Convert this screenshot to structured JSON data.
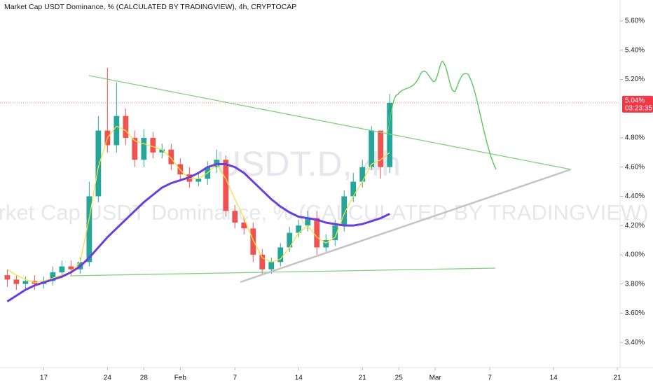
{
  "chart_data": {
    "type": "candlestick",
    "title": "Market Cap USDT Dominance, % (CALCULATED BY TRADINGVIEW), 4h, CRYPTOCAP",
    "watermark": [
      "USDT.D, 4h",
      "Market Cap USDT Dominance, % (CALCULATED BY TRADINGVIEW)"
    ],
    "x": [
      -4,
      -3,
      -2,
      -1,
      0,
      1,
      2,
      3,
      4,
      5,
      6,
      7,
      8,
      9,
      10,
      11,
      12,
      13,
      14,
      15,
      16,
      17,
      18,
      19,
      20,
      21,
      22,
      23,
      24,
      25,
      26,
      27,
      28,
      29,
      30,
      31,
      32,
      33,
      34,
      35,
      36,
      37,
      38
    ],
    "open": [
      3.86,
      3.83,
      3.8,
      3.82,
      3.8,
      3.82,
      3.88,
      3.92,
      3.9,
      3.95,
      4.4,
      4.85,
      4.75,
      4.95,
      4.8,
      4.65,
      4.8,
      4.7,
      4.72,
      4.62,
      4.55,
      4.5,
      4.52,
      4.6,
      4.65,
      4.3,
      4.22,
      4.18,
      4.0,
      3.9,
      3.95,
      4.05,
      4.15,
      4.2,
      4.25,
      4.05,
      4.1,
      4.2,
      4.4,
      4.5,
      4.6,
      4.85,
      4.6
    ],
    "high": [
      3.9,
      3.86,
      3.85,
      3.86,
      3.85,
      3.92,
      3.96,
      3.96,
      3.98,
      4.5,
      4.95,
      5.28,
      5.18,
      5.0,
      4.85,
      4.86,
      4.84,
      4.76,
      4.76,
      4.66,
      4.6,
      4.56,
      4.64,
      4.72,
      4.68,
      4.34,
      4.26,
      4.22,
      4.04,
      3.98,
      4.08,
      4.19,
      4.24,
      4.3,
      4.3,
      4.14,
      4.24,
      4.44,
      4.56,
      4.65,
      4.88,
      4.85,
      5.1
    ],
    "low": [
      3.78,
      3.76,
      3.76,
      3.76,
      3.77,
      3.79,
      3.84,
      3.86,
      3.87,
      3.92,
      4.36,
      4.7,
      4.7,
      4.75,
      4.6,
      4.6,
      4.66,
      4.66,
      4.58,
      4.5,
      4.46,
      4.47,
      4.48,
      4.56,
      4.26,
      4.18,
      4.14,
      3.95,
      3.86,
      3.87,
      3.92,
      4.02,
      4.12,
      4.16,
      4.0,
      4.02,
      4.06,
      4.16,
      4.36,
      4.46,
      4.58,
      4.52,
      4.56
    ],
    "close": [
      3.83,
      3.8,
      3.82,
      3.8,
      3.82,
      3.88,
      3.92,
      3.9,
      3.95,
      4.4,
      4.85,
      4.75,
      4.95,
      4.8,
      4.65,
      4.8,
      4.7,
      4.72,
      4.62,
      4.55,
      4.5,
      4.52,
      4.6,
      4.65,
      4.3,
      4.22,
      4.18,
      4.0,
      3.9,
      3.95,
      4.05,
      4.15,
      4.2,
      4.25,
      4.05,
      4.1,
      4.2,
      4.4,
      4.5,
      4.6,
      4.85,
      4.6,
      5.04
    ],
    "up_color": "#26a69a",
    "down_color": "#ef5350",
    "series": [
      {
        "color": "#f5e03f",
        "values": [
          3.9,
          3.86,
          3.83,
          3.81,
          3.82,
          3.84,
          3.86,
          3.88,
          3.95,
          4.25,
          4.6,
          4.8,
          4.88,
          4.85,
          4.78,
          4.76,
          4.74,
          4.72,
          4.66,
          4.58,
          4.52,
          4.52,
          4.56,
          4.62,
          4.52,
          4.38,
          4.25,
          4.1,
          3.98,
          3.95,
          3.97,
          4.05,
          4.15,
          4.2,
          4.12,
          4.08,
          4.12,
          4.28,
          4.4,
          4.5,
          4.62,
          4.65,
          4.7
        ]
      },
      {
        "color": "#6a3fdb",
        "values": [
          3.68,
          3.72,
          3.76,
          3.79,
          3.81,
          3.83,
          3.85,
          3.88,
          3.92,
          3.98,
          4.05,
          4.12,
          4.18,
          4.24,
          4.3,
          4.36,
          4.41,
          4.46,
          4.49,
          4.51,
          4.53,
          4.56,
          4.6,
          4.62,
          4.62,
          4.6,
          4.56,
          4.5,
          4.44,
          4.38,
          4.33,
          4.29,
          4.26,
          4.25,
          4.24,
          4.22,
          4.21,
          4.2,
          4.2,
          4.21,
          4.23,
          4.25,
          4.28
        ]
      }
    ],
    "xlim": [
      -4.8,
      63.3
    ],
    "ylim": [
      3.228,
      5.744
    ],
    "xticks": [
      {
        "value": 0,
        "label": "17"
      },
      {
        "value": 7,
        "label": "24"
      },
      {
        "value": 11,
        "label": "28"
      },
      {
        "value": 15,
        "label": "Feb"
      },
      {
        "value": 21,
        "label": "7"
      },
      {
        "value": 28,
        "label": "14"
      },
      {
        "value": 35,
        "label": "21"
      },
      {
        "value": 39,
        "label": "25"
      },
      {
        "value": 43,
        "label": "Mar"
      },
      {
        "value": 49,
        "label": "7"
      },
      {
        "value": 56,
        "label": "14"
      },
      {
        "value": 63,
        "label": "21"
      }
    ],
    "yticks": [
      {
        "value": 5.6,
        "label": "5.60%"
      },
      {
        "value": 5.4,
        "label": "5.40%"
      },
      {
        "value": 5.2,
        "label": "5.20%"
      },
      {
        "value": 4.8,
        "label": "4.80%"
      },
      {
        "value": 4.6,
        "label": "4.60%"
      },
      {
        "value": 4.4,
        "label": "4.40%"
      },
      {
        "value": 4.2,
        "label": "4.20%"
      },
      {
        "value": 4.0,
        "label": "4.00%"
      },
      {
        "value": 3.8,
        "label": "3.80%"
      },
      {
        "value": 3.6,
        "label": "3.60%"
      },
      {
        "value": 3.4,
        "label": "3.40%"
      }
    ],
    "last_price": {
      "value": 5.04,
      "label": "5.04%"
    },
    "countdown": "03:23:35"
  }
}
